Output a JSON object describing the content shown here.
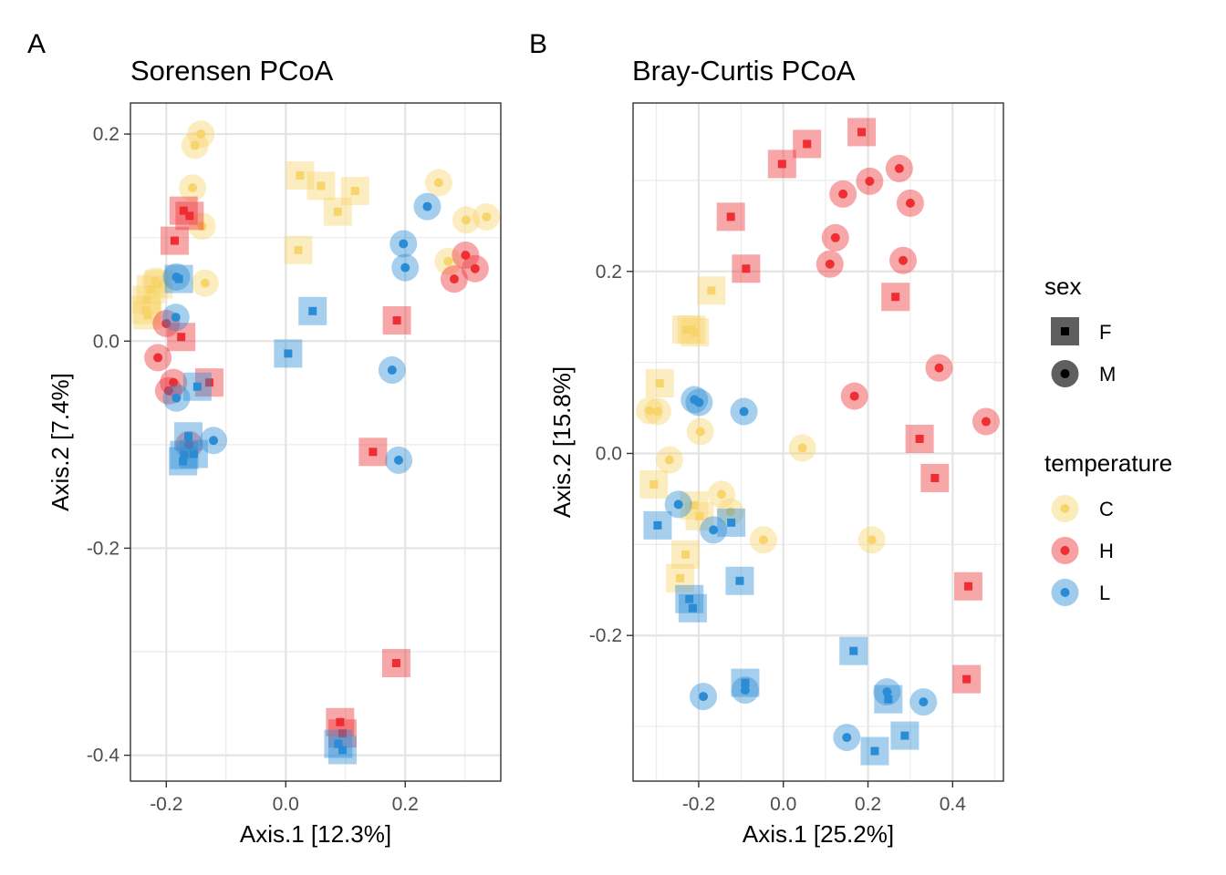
{
  "colors": {
    "C": "#F7D56B",
    "H": "#EE2E33",
    "L": "#2B8CD6"
  },
  "legend": {
    "sex_title": "sex",
    "sex_items": [
      {
        "key": "F",
        "label": "F",
        "shape": "square"
      },
      {
        "key": "M",
        "label": "M",
        "shape": "circle"
      }
    ],
    "temp_title": "temperature",
    "temp_items": [
      {
        "key": "C",
        "label": "C"
      },
      {
        "key": "H",
        "label": "H"
      },
      {
        "key": "L",
        "label": "L"
      }
    ]
  },
  "chart_data": [
    {
      "type": "scatter",
      "panel_label": "A",
      "title": "Sorensen PCoA",
      "xlabel": "Axis.1   [12.3%]",
      "ylabel": "Axis.2   [7.4%]",
      "xlim": [
        -0.26,
        0.36
      ],
      "ylim": [
        -0.425,
        0.23
      ],
      "xticks": [
        -0.2,
        0.0,
        0.2
      ],
      "xtick_labels": [
        "-0.2",
        "0.0",
        "0.2"
      ],
      "yticks": [
        -0.4,
        -0.2,
        0.0,
        0.2
      ],
      "ytick_labels": [
        "-0.4",
        "-0.2",
        "0.0",
        "0.2"
      ],
      "grid": true,
      "points": [
        {
          "x": -0.142,
          "y": 0.2,
          "sex": "M",
          "temp": "C"
        },
        {
          "x": -0.152,
          "y": 0.189,
          "sex": "M",
          "temp": "C"
        },
        {
          "x": -0.156,
          "y": 0.148,
          "sex": "M",
          "temp": "C"
        },
        {
          "x": -0.14,
          "y": 0.111,
          "sex": "M",
          "temp": "C"
        },
        {
          "x": -0.135,
          "y": 0.056,
          "sex": "M",
          "temp": "C"
        },
        {
          "x": -0.213,
          "y": 0.055,
          "sex": "F",
          "temp": "C"
        },
        {
          "x": -0.226,
          "y": 0.05,
          "sex": "F",
          "temp": "C"
        },
        {
          "x": -0.233,
          "y": 0.04,
          "sex": "F",
          "temp": "C"
        },
        {
          "x": -0.234,
          "y": 0.03,
          "sex": "F",
          "temp": "C"
        },
        {
          "x": -0.231,
          "y": 0.025,
          "sex": "F",
          "temp": "C"
        },
        {
          "x": -0.218,
          "y": 0.058,
          "sex": "M",
          "temp": "C"
        },
        {
          "x": 0.024,
          "y": 0.16,
          "sex": "F",
          "temp": "C"
        },
        {
          "x": 0.059,
          "y": 0.15,
          "sex": "F",
          "temp": "C"
        },
        {
          "x": 0.116,
          "y": 0.145,
          "sex": "F",
          "temp": "C"
        },
        {
          "x": 0.087,
          "y": 0.125,
          "sex": "F",
          "temp": "C"
        },
        {
          "x": 0.021,
          "y": 0.088,
          "sex": "F",
          "temp": "C"
        },
        {
          "x": 0.256,
          "y": 0.153,
          "sex": "M",
          "temp": "C"
        },
        {
          "x": 0.302,
          "y": 0.117,
          "sex": "M",
          "temp": "C"
        },
        {
          "x": 0.336,
          "y": 0.12,
          "sex": "M",
          "temp": "C"
        },
        {
          "x": 0.272,
          "y": 0.077,
          "sex": "M",
          "temp": "C"
        },
        {
          "x": -0.186,
          "y": 0.097,
          "sex": "F",
          "temp": "H"
        },
        {
          "x": -0.171,
          "y": 0.126,
          "sex": "F",
          "temp": "H"
        },
        {
          "x": -0.161,
          "y": 0.121,
          "sex": "F",
          "temp": "H"
        },
        {
          "x": -0.2,
          "y": 0.017,
          "sex": "M",
          "temp": "H"
        },
        {
          "x": -0.175,
          "y": 0.004,
          "sex": "F",
          "temp": "H"
        },
        {
          "x": -0.214,
          "y": -0.016,
          "sex": "M",
          "temp": "H"
        },
        {
          "x": -0.188,
          "y": -0.04,
          "sex": "M",
          "temp": "H"
        },
        {
          "x": -0.196,
          "y": -0.048,
          "sex": "M",
          "temp": "H"
        },
        {
          "x": -0.128,
          "y": -0.04,
          "sex": "F",
          "temp": "H"
        },
        {
          "x": -0.162,
          "y": -0.1,
          "sex": "M",
          "temp": "H"
        },
        {
          "x": 0.186,
          "y": 0.02,
          "sex": "F",
          "temp": "H"
        },
        {
          "x": 0.146,
          "y": -0.107,
          "sex": "F",
          "temp": "H"
        },
        {
          "x": 0.185,
          "y": -0.311,
          "sex": "F",
          "temp": "H"
        },
        {
          "x": 0.091,
          "y": -0.368,
          "sex": "F",
          "temp": "H"
        },
        {
          "x": 0.095,
          "y": -0.379,
          "sex": "F",
          "temp": "H"
        },
        {
          "x": 0.301,
          "y": 0.083,
          "sex": "M",
          "temp": "H"
        },
        {
          "x": 0.317,
          "y": 0.07,
          "sex": "M",
          "temp": "H"
        },
        {
          "x": 0.282,
          "y": 0.06,
          "sex": "M",
          "temp": "H"
        },
        {
          "x": -0.183,
          "y": 0.062,
          "sex": "M",
          "temp": "L"
        },
        {
          "x": -0.179,
          "y": 0.06,
          "sex": "F",
          "temp": "L"
        },
        {
          "x": -0.184,
          "y": 0.023,
          "sex": "M",
          "temp": "L"
        },
        {
          "x": -0.183,
          "y": -0.055,
          "sex": "M",
          "temp": "L"
        },
        {
          "x": -0.148,
          "y": -0.044,
          "sex": "F",
          "temp": "L"
        },
        {
          "x": -0.163,
          "y": -0.092,
          "sex": "F",
          "temp": "L"
        },
        {
          "x": -0.121,
          "y": -0.096,
          "sex": "M",
          "temp": "L"
        },
        {
          "x": -0.154,
          "y": -0.109,
          "sex": "F",
          "temp": "L"
        },
        {
          "x": -0.172,
          "y": -0.116,
          "sex": "F",
          "temp": "L"
        },
        {
          "x": -0.17,
          "y": -0.11,
          "sex": "F",
          "temp": "L"
        },
        {
          "x": 0.045,
          "y": 0.029,
          "sex": "F",
          "temp": "L"
        },
        {
          "x": 0.004,
          "y": -0.012,
          "sex": "F",
          "temp": "L"
        },
        {
          "x": 0.237,
          "y": 0.13,
          "sex": "M",
          "temp": "L"
        },
        {
          "x": 0.197,
          "y": 0.094,
          "sex": "M",
          "temp": "L"
        },
        {
          "x": 0.2,
          "y": 0.071,
          "sex": "M",
          "temp": "L"
        },
        {
          "x": 0.178,
          "y": -0.028,
          "sex": "M",
          "temp": "L"
        },
        {
          "x": 0.189,
          "y": -0.115,
          "sex": "M",
          "temp": "L"
        },
        {
          "x": 0.088,
          "y": -0.389,
          "sex": "F",
          "temp": "L"
        },
        {
          "x": 0.095,
          "y": -0.395,
          "sex": "F",
          "temp": "L"
        }
      ]
    },
    {
      "type": "scatter",
      "panel_label": "B",
      "title": "Bray-Curtis PCoA",
      "xlabel": "Axis.1   [25.2%]",
      "ylabel": "Axis.2   [15.8%]",
      "xlim": [
        -0.355,
        0.52
      ],
      "ylim": [
        -0.36,
        0.385
      ],
      "xticks": [
        -0.2,
        0.0,
        0.2,
        0.4
      ],
      "xtick_labels": [
        "-0.2",
        "0.0",
        "0.2",
        "0.4"
      ],
      "yticks": [
        -0.2,
        0.0,
        0.2
      ],
      "ytick_labels": [
        "-0.2",
        "0.0",
        "0.2"
      ],
      "grid": true,
      "points": [
        {
          "x": -0.17,
          "y": 0.179,
          "sex": "F",
          "temp": "C"
        },
        {
          "x": -0.217,
          "y": 0.136,
          "sex": "F",
          "temp": "C"
        },
        {
          "x": -0.229,
          "y": 0.136,
          "sex": "F",
          "temp": "C"
        },
        {
          "x": -0.209,
          "y": 0.133,
          "sex": "F",
          "temp": "C"
        },
        {
          "x": -0.292,
          "y": 0.077,
          "sex": "F",
          "temp": "C"
        },
        {
          "x": -0.316,
          "y": 0.047,
          "sex": "M",
          "temp": "C"
        },
        {
          "x": -0.297,
          "y": 0.046,
          "sex": "M",
          "temp": "C"
        },
        {
          "x": -0.196,
          "y": 0.024,
          "sex": "M",
          "temp": "C"
        },
        {
          "x": -0.269,
          "y": -0.007,
          "sex": "M",
          "temp": "C"
        },
        {
          "x": -0.306,
          "y": -0.034,
          "sex": "F",
          "temp": "C"
        },
        {
          "x": -0.211,
          "y": -0.057,
          "sex": "F",
          "temp": "C"
        },
        {
          "x": -0.146,
          "y": -0.045,
          "sex": "M",
          "temp": "C"
        },
        {
          "x": -0.125,
          "y": -0.064,
          "sex": "M",
          "temp": "C"
        },
        {
          "x": -0.198,
          "y": -0.069,
          "sex": "F",
          "temp": "C"
        },
        {
          "x": -0.231,
          "y": -0.111,
          "sex": "F",
          "temp": "C"
        },
        {
          "x": -0.244,
          "y": -0.137,
          "sex": "F",
          "temp": "C"
        },
        {
          "x": -0.047,
          "y": -0.095,
          "sex": "M",
          "temp": "C"
        },
        {
          "x": 0.045,
          "y": 0.006,
          "sex": "M",
          "temp": "C"
        },
        {
          "x": 0.209,
          "y": -0.095,
          "sex": "M",
          "temp": "C"
        },
        {
          "x": 0.185,
          "y": 0.353,
          "sex": "F",
          "temp": "H"
        },
        {
          "x": 0.056,
          "y": 0.34,
          "sex": "F",
          "temp": "H"
        },
        {
          "x": -0.003,
          "y": 0.318,
          "sex": "F",
          "temp": "H"
        },
        {
          "x": 0.274,
          "y": 0.313,
          "sex": "M",
          "temp": "H"
        },
        {
          "x": 0.204,
          "y": 0.299,
          "sex": "M",
          "temp": "H"
        },
        {
          "x": 0.141,
          "y": 0.285,
          "sex": "M",
          "temp": "H"
        },
        {
          "x": 0.3,
          "y": 0.275,
          "sex": "M",
          "temp": "H"
        },
        {
          "x": -0.124,
          "y": 0.26,
          "sex": "F",
          "temp": "H"
        },
        {
          "x": 0.123,
          "y": 0.237,
          "sex": "M",
          "temp": "H"
        },
        {
          "x": 0.283,
          "y": 0.212,
          "sex": "M",
          "temp": "H"
        },
        {
          "x": 0.11,
          "y": 0.208,
          "sex": "M",
          "temp": "H"
        },
        {
          "x": -0.088,
          "y": 0.203,
          "sex": "F",
          "temp": "H"
        },
        {
          "x": 0.265,
          "y": 0.172,
          "sex": "F",
          "temp": "H"
        },
        {
          "x": 0.368,
          "y": 0.094,
          "sex": "M",
          "temp": "H"
        },
        {
          "x": 0.168,
          "y": 0.063,
          "sex": "M",
          "temp": "H"
        },
        {
          "x": 0.479,
          "y": 0.035,
          "sex": "M",
          "temp": "H"
        },
        {
          "x": 0.322,
          "y": 0.016,
          "sex": "F",
          "temp": "H"
        },
        {
          "x": 0.358,
          "y": -0.027,
          "sex": "F",
          "temp": "H"
        },
        {
          "x": 0.437,
          "y": -0.146,
          "sex": "F",
          "temp": "H"
        },
        {
          "x": 0.433,
          "y": -0.248,
          "sex": "F",
          "temp": "H"
        },
        {
          "x": -0.21,
          "y": 0.059,
          "sex": "M",
          "temp": "L"
        },
        {
          "x": -0.199,
          "y": 0.056,
          "sex": "M",
          "temp": "L"
        },
        {
          "x": -0.093,
          "y": 0.046,
          "sex": "M",
          "temp": "L"
        },
        {
          "x": -0.248,
          "y": -0.056,
          "sex": "M",
          "temp": "L"
        },
        {
          "x": -0.297,
          "y": -0.079,
          "sex": "F",
          "temp": "L"
        },
        {
          "x": -0.165,
          "y": -0.084,
          "sex": "M",
          "temp": "L"
        },
        {
          "x": -0.123,
          "y": -0.076,
          "sex": "F",
          "temp": "L"
        },
        {
          "x": -0.103,
          "y": -0.14,
          "sex": "F",
          "temp": "L"
        },
        {
          "x": -0.222,
          "y": -0.16,
          "sex": "F",
          "temp": "L"
        },
        {
          "x": -0.214,
          "y": -0.17,
          "sex": "F",
          "temp": "L"
        },
        {
          "x": 0.166,
          "y": -0.217,
          "sex": "F",
          "temp": "L"
        },
        {
          "x": -0.09,
          "y": -0.252,
          "sex": "F",
          "temp": "L"
        },
        {
          "x": -0.09,
          "y": -0.26,
          "sex": "M",
          "temp": "L"
        },
        {
          "x": -0.189,
          "y": -0.267,
          "sex": "M",
          "temp": "L"
        },
        {
          "x": 0.245,
          "y": -0.262,
          "sex": "M",
          "temp": "L"
        },
        {
          "x": 0.248,
          "y": -0.27,
          "sex": "F",
          "temp": "L"
        },
        {
          "x": 0.331,
          "y": -0.273,
          "sex": "M",
          "temp": "L"
        },
        {
          "x": 0.15,
          "y": -0.312,
          "sex": "M",
          "temp": "L"
        },
        {
          "x": 0.287,
          "y": -0.31,
          "sex": "F",
          "temp": "L"
        },
        {
          "x": 0.216,
          "y": -0.327,
          "sex": "F",
          "temp": "L"
        }
      ]
    }
  ]
}
